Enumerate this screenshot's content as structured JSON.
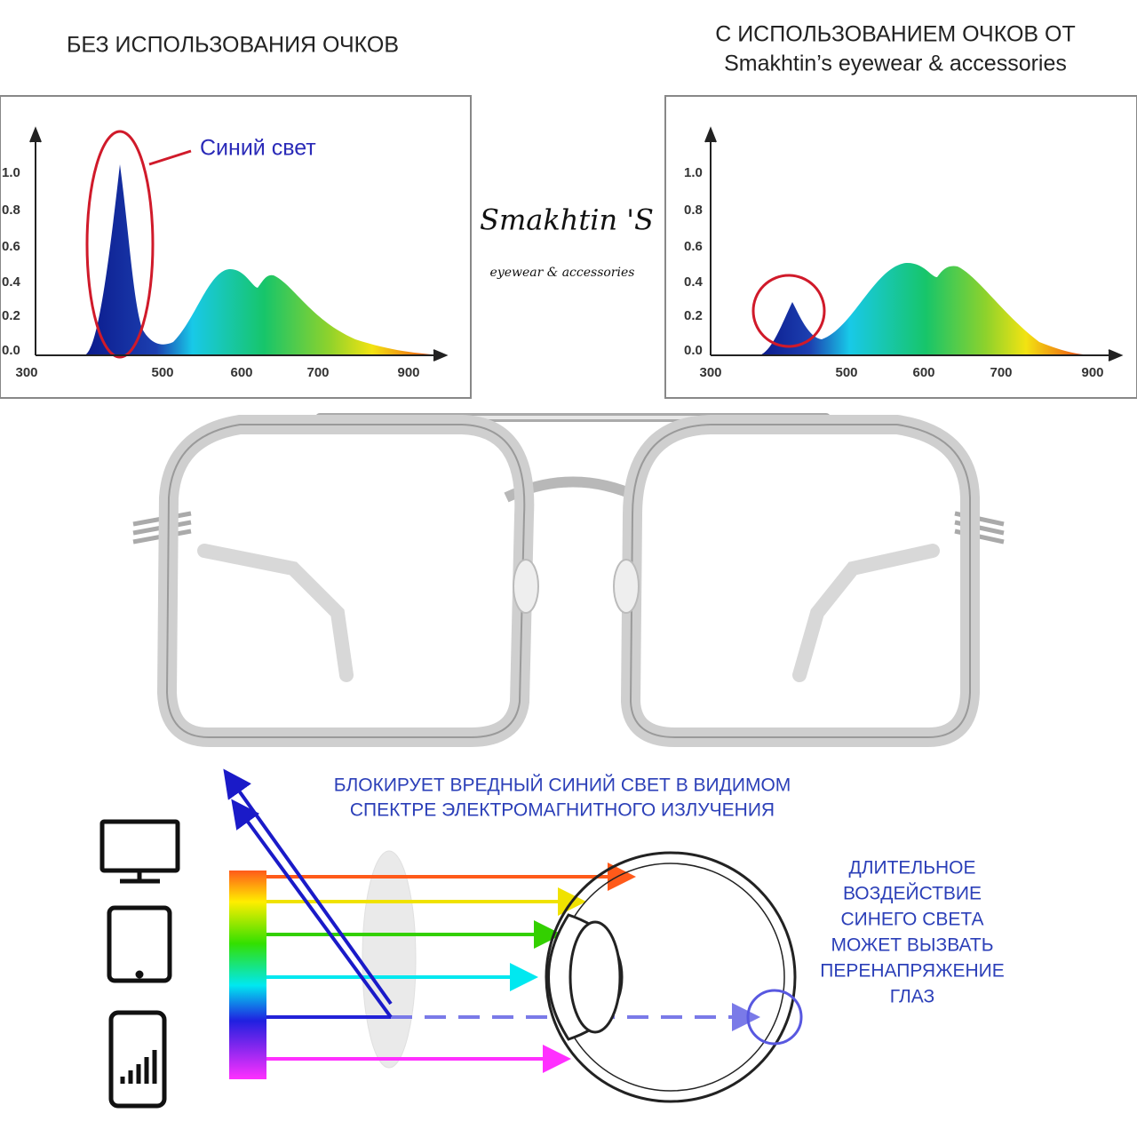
{
  "left_heading": "БЕЗ ИСПОЛЬЗОВАНИЯ ОЧКОВ",
  "right_heading": [
    "С ИСПОЛЬЗОВАНИЕМ ОЧКОВ ОТ",
    "Smakhtin’s eyewear & accessories"
  ],
  "logo": {
    "name": "Smakhtin 'S",
    "tagline": "eyewear & accessories"
  },
  "spectrum_charts": [
    {
      "annotation": "Синий свет",
      "yticks": [
        "0.0",
        "0.2",
        "0.4",
        "0.6",
        "0.8",
        "1.0"
      ],
      "xticks": [
        "300",
        "500",
        "600",
        "700",
        "900"
      ]
    },
    {
      "yticks": [
        "0.0",
        "0.2",
        "0.4",
        "0.6",
        "0.8",
        "1.0"
      ],
      "xticks": [
        "300",
        "500",
        "600",
        "700",
        "900"
      ]
    }
  ],
  "diagram": {
    "caption": [
      "БЛОКИРУЕТ ВРЕДНЫЙ СИНИЙ СВЕТ В ВИДИМОМ",
      "СПЕКТРЕ ЭЛЕКТРОМАГНИТНОГО ИЗЛУЧЕНИЯ"
    ],
    "warning": [
      "ДЛИТЕЛЬНОЕ",
      "ВОЗДЕЙСТВИЕ",
      "СИНЕГО СВЕТА",
      "МОЖЕТ ВЫЗВАТЬ",
      "ПЕРЕНАПРЯЖЕНИЕ",
      "ГЛАЗ"
    ]
  }
}
